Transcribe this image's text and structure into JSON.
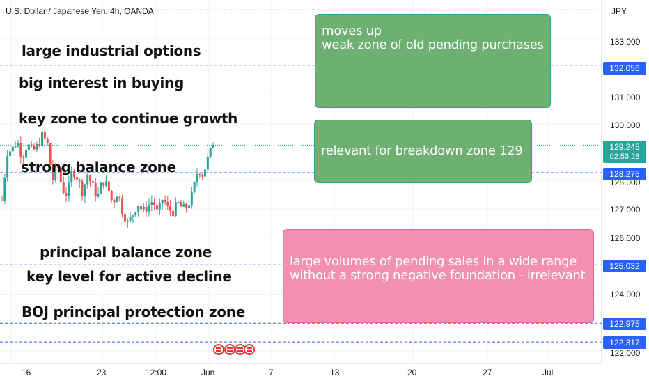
{
  "header": {
    "title": "U.S. Dollar / Japanese Yen, 4h, OANDA",
    "currency": "JPY"
  },
  "annotations": [
    "large industrial options",
    "big interest in buying",
    "key zone to continue growth",
    "strong balance zone",
    "principal balance zone",
    "key level for active decline",
    "BOJ principal protection zone"
  ],
  "boxes": {
    "top": {
      "line1": "moves up",
      "line2": "weak  zone of old pending purchases"
    },
    "middle": {
      "line1": "relevant for breakdown zone  129"
    },
    "bottom": {
      "line1": "large volumes of pending sales in a wide range",
      "line2": "without a strong negative foundation - irrelevant"
    }
  },
  "levels": [
    "132.056",
    "128.275",
    "125.032",
    "122.975",
    "122.317"
  ],
  "current_price": {
    "value": "129.245",
    "countdown": "02:53:28"
  },
  "colors": {
    "up": "#26a69a",
    "down": "#ef5350",
    "level_line": "#2962ff",
    "price_line": "#26a69a",
    "green_box": "#6db071",
    "pink_box": "#f28fb3"
  },
  "icons": [
    "us-flag-icon",
    "us-flag-icon",
    "us-flag-icon",
    "us-flag-icon"
  ],
  "chart_data": {
    "type": "candlestick",
    "y_axis_ticks": [
      "133.000",
      "131.000",
      "130.000",
      "128.000",
      "127.000",
      "126.000",
      "124.000",
      "122.000"
    ],
    "x_axis_ticks": [
      "16",
      "23",
      "12:00",
      "Jun",
      "7",
      "13",
      "20",
      "27",
      "Jul"
    ],
    "ylim": [
      121.8,
      134.0
    ],
    "horizontal_levels": [
      132.056,
      128.275,
      125.032,
      122.975,
      122.317
    ],
    "top_dashed_level": 134.0,
    "close_path": [
      127.3,
      129.0,
      129.1,
      129.4,
      128.8,
      129.3,
      129.0,
      129.2,
      129.6,
      129.3,
      128.0,
      128.6,
      127.7,
      127.5,
      128.4,
      128.1,
      127.6,
      128.2,
      127.8,
      127.4,
      128.0,
      127.8,
      127.2,
      127.6,
      126.9,
      126.5,
      126.8,
      127.2,
      126.9,
      127.1,
      127.3,
      126.8,
      127.4,
      127.0,
      126.9,
      127.2,
      127.0,
      127.1,
      127.6,
      128.4,
      128.2,
      128.8,
      129.245
    ],
    "current_price": 129.245
  }
}
